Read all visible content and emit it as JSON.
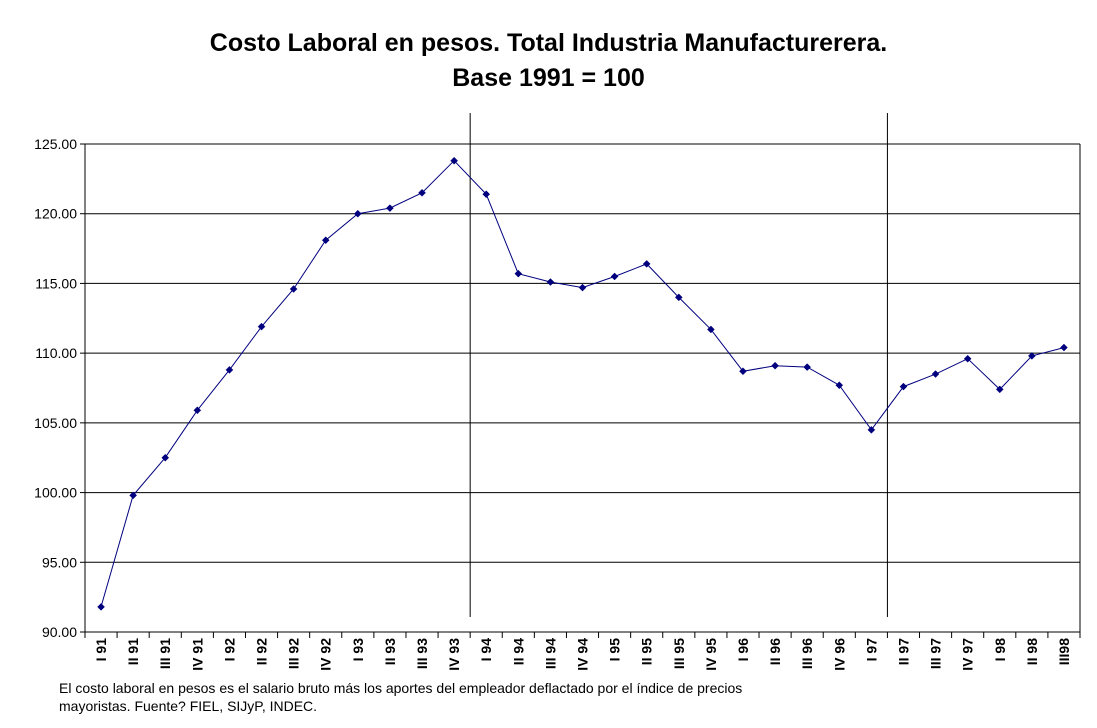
{
  "chart_data": {
    "type": "line",
    "title": "Costo Laboral en pesos. Total Industria Manufacturerera.",
    "subtitle": "Base 1991 = 100",
    "xlabel": "",
    "ylabel": "",
    "ylim": [
      90,
      125
    ],
    "yticks": [
      "90.00",
      "95.00",
      "100.00",
      "105.00",
      "110.00",
      "115.00",
      "120.00",
      "125.00"
    ],
    "grid": true,
    "legend": "none",
    "series_color": "#00007f",
    "categories": [
      "I 91",
      "II 91",
      "III 91",
      "IV 91",
      "I 92",
      "II 92",
      "III 92",
      "IV 92",
      "I 93",
      "II 93",
      "III 93",
      "IV 93",
      "I 94",
      "II 94",
      "III 94",
      "IV 94",
      "I 95",
      "II 95",
      "III 95",
      "IV 95",
      "I 96",
      "II 96",
      "III 96",
      "IV 96",
      "I 97",
      "II 97",
      "III 97",
      "IV 97",
      "I 98",
      "II 98",
      "III98"
    ],
    "values": [
      91.8,
      99.8,
      102.5,
      105.9,
      108.8,
      111.9,
      114.6,
      118.1,
      120.0,
      120.4,
      121.5,
      123.8,
      121.4,
      115.7,
      115.1,
      114.7,
      115.5,
      116.4,
      114.0,
      111.7,
      108.7,
      109.1,
      109.0,
      107.7,
      104.5,
      107.6,
      108.5,
      109.6,
      107.4,
      109.8,
      110.4
    ],
    "vertical_markers": [
      "IV 93",
      "I 97"
    ]
  },
  "footnote": {
    "line1": "El costo laboral en pesos es el salario bruto más los aportes del empleador deflactado por el índice de precios",
    "line2": "mayoristas. Fuente? FIEL, SIJyP, INDEC."
  }
}
